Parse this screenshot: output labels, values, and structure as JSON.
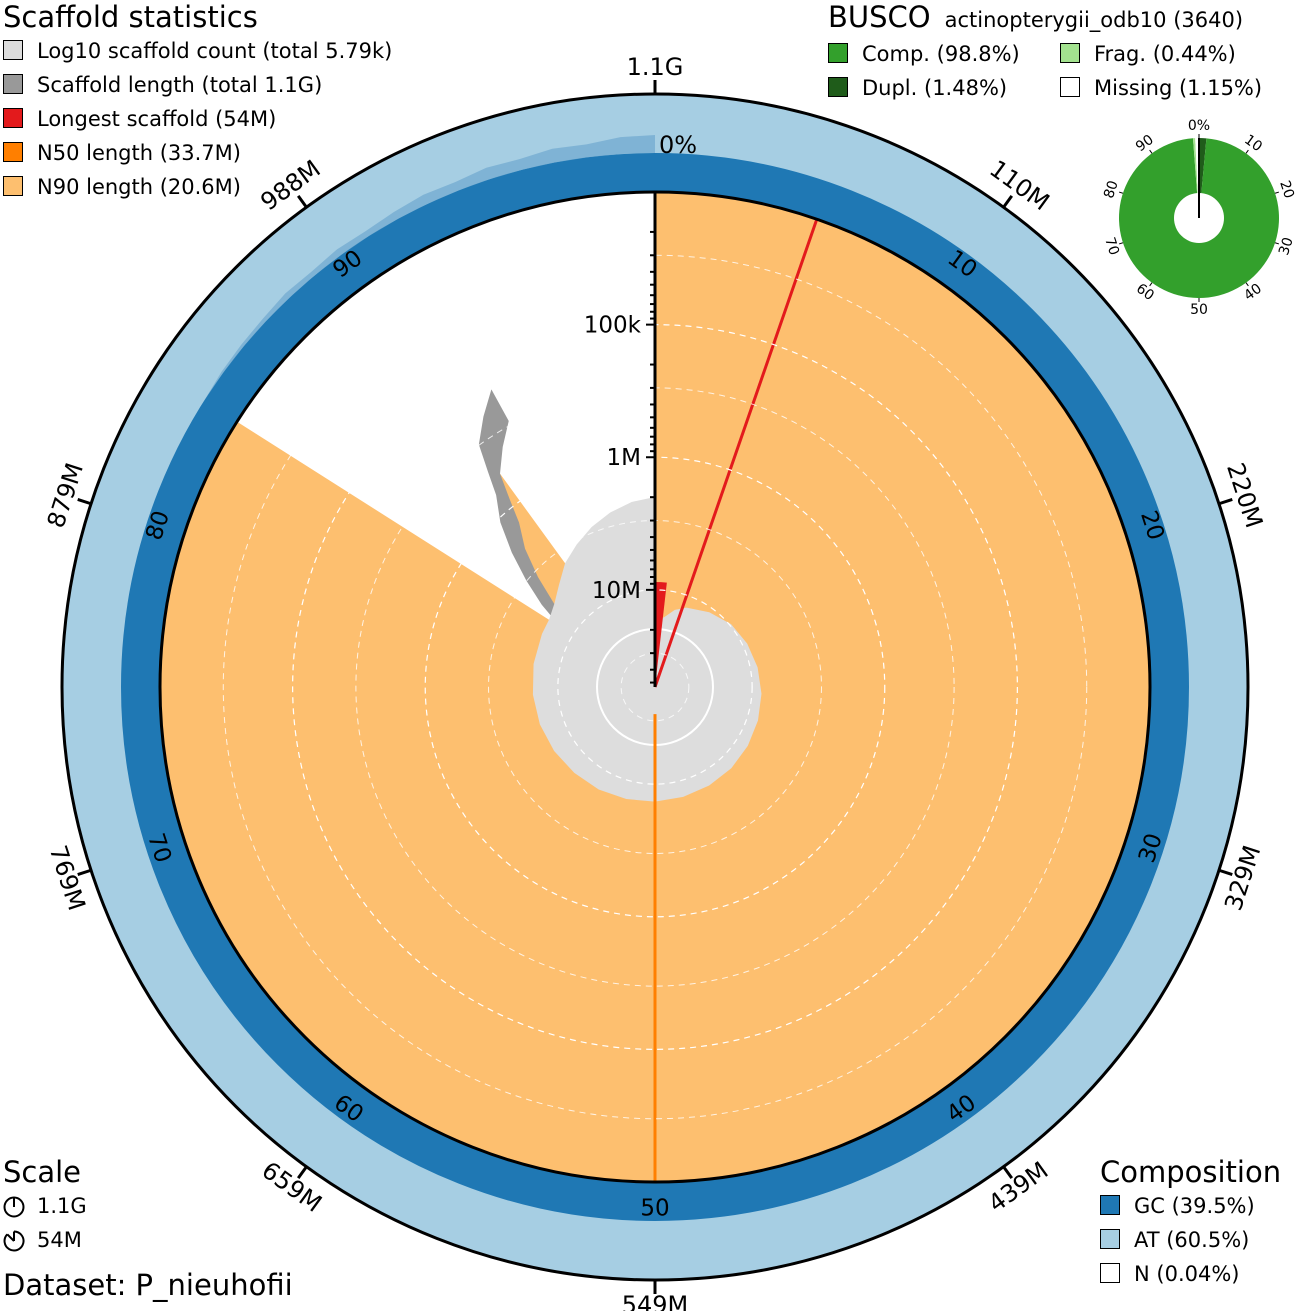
{
  "scaffold_stats": {
    "title": "Scaffold statistics",
    "legend": [
      {
        "label": "Log10 scaffold count (total 5.79k)",
        "color": "#dddddd"
      },
      {
        "label": "Scaffold length (total 1.1G)",
        "color": "#999999"
      },
      {
        "label": "Longest scaffold (54M)",
        "color": "#e31a1c"
      },
      {
        "label": "N50 length (33.7M)",
        "color": "#ff7f00"
      },
      {
        "label": "N90 length (20.6M)",
        "color": "#fdbf6f"
      }
    ]
  },
  "busco": {
    "title": "BUSCO",
    "lineage": "actinopterygii_odb10 (3640)",
    "legend": [
      {
        "label": "Comp. (98.8%)",
        "color": "#33a02c"
      },
      {
        "label": "Frag. (0.44%)",
        "color": "#a3e28f"
      },
      {
        "label": "Dupl. (1.48%)",
        "color": "#1f5c1a"
      },
      {
        "label": "Missing (1.15%)",
        "color": "#ffffff"
      }
    ],
    "ticks": [
      "0%",
      "10",
      "20",
      "30",
      "40",
      "50",
      "60",
      "70",
      "80",
      "90"
    ]
  },
  "scale": {
    "title": "Scale",
    "items": [
      {
        "label": "1.1G",
        "fraction": 1.0
      },
      {
        "label": "54M",
        "fraction": 0.049
      }
    ]
  },
  "dataset": "Dataset: P_nieuhofii",
  "composition": {
    "title": "Composition",
    "legend": [
      {
        "label": "GC (39.5%)",
        "color": "#1f78b4"
      },
      {
        "label": "AT (60.5%)",
        "color": "#a6cee3"
      },
      {
        "label": "N (0.04%)",
        "color": "#ffffff"
      }
    ]
  },
  "chart_data": {
    "type": "snail",
    "total_length": "1.1G",
    "scaffold_count": "5.79k",
    "longest_scaffold": 54,
    "n50": 33.7,
    "n90": 20.6,
    "length_unit": "M",
    "gc_percent": 39.5,
    "at_percent": 60.5,
    "n_percent": 0.04,
    "n50_percent": 50,
    "n90_percent": 90,
    "outer_labels": [
      "1.1G",
      "110M",
      "220M",
      "329M",
      "439M",
      "549M",
      "659M",
      "769M",
      "879M",
      "988M"
    ],
    "percent_labels": [
      "0%",
      "10",
      "20",
      "30",
      "40",
      "50",
      "60",
      "70",
      "80",
      "90"
    ],
    "radial_axis_labels": [
      {
        "label": "100k",
        "value": 0.1
      },
      {
        "label": "1M",
        "value": 1
      },
      {
        "label": "10M",
        "value": 10
      }
    ],
    "log_scale_max": 54,
    "log_scale_min": 0.01,
    "count_scale_max_log10": 3.76,
    "length_profile": [
      [
        0.0,
        54
      ],
      [
        2.0,
        50
      ],
      [
        4.0,
        47
      ],
      [
        6.0,
        45
      ],
      [
        9.0,
        43
      ],
      [
        12.0,
        41
      ],
      [
        15.0,
        40
      ],
      [
        18.0,
        39
      ],
      [
        21.0,
        38
      ],
      [
        24.0,
        37.5
      ],
      [
        27.0,
        37
      ],
      [
        30.0,
        36.5
      ],
      [
        33.0,
        36
      ],
      [
        36.0,
        35.5
      ],
      [
        39.0,
        35
      ],
      [
        42.0,
        34.5
      ],
      [
        45.0,
        34.2
      ],
      [
        48.0,
        34
      ],
      [
        50.0,
        33.7
      ],
      [
        53.0,
        33
      ],
      [
        56.0,
        31
      ],
      [
        59.0,
        30
      ],
      [
        62.0,
        29
      ],
      [
        65.0,
        28
      ],
      [
        68.0,
        27
      ],
      [
        71.0,
        26
      ],
      [
        74.0,
        25
      ],
      [
        77.0,
        24
      ],
      [
        80.0,
        23
      ],
      [
        82.0,
        21
      ],
      [
        84.0,
        13
      ],
      [
        85.0,
        8
      ],
      [
        86.0,
        5
      ],
      [
        87.0,
        3
      ],
      [
        88.0,
        1.8
      ],
      [
        89.0,
        1.2
      ],
      [
        89.5,
        0.8
      ],
      [
        90.0,
        0.5
      ],
      [
        91.0,
        0.35
      ],
      [
        92.0,
        0.25
      ],
      [
        93.0,
        0.18
      ],
      [
        94.0,
        0.13
      ],
      [
        95.0,
        0.1
      ],
      [
        96.0,
        0.08
      ],
      [
        97.0,
        0.06
      ],
      [
        98.0,
        0.045
      ],
      [
        99.0,
        0.03
      ],
      [
        100.0,
        0.01
      ]
    ],
    "count_profile": [
      [
        0.0,
        0.0
      ],
      [
        2.0,
        0.0
      ],
      [
        4.0,
        0.3
      ],
      [
        6.0,
        0.48
      ],
      [
        10.0,
        0.7
      ],
      [
        14.0,
        0.9
      ],
      [
        18.0,
        1.0
      ],
      [
        22.0,
        1.08
      ],
      [
        26.0,
        1.15
      ],
      [
        30.0,
        1.2
      ],
      [
        34.0,
        1.25
      ],
      [
        38.0,
        1.3
      ],
      [
        42.0,
        1.33
      ],
      [
        46.0,
        1.36
      ],
      [
        50.0,
        1.4
      ],
      [
        54.0,
        1.43
      ],
      [
        58.0,
        1.47
      ],
      [
        62.0,
        1.5
      ],
      [
        66.0,
        1.55
      ],
      [
        70.0,
        1.6
      ],
      [
        74.0,
        1.64
      ],
      [
        78.0,
        1.68
      ],
      [
        82.0,
        1.72
      ],
      [
        84.0,
        1.74
      ],
      [
        86.0,
        1.9
      ],
      [
        88.0,
        2.2
      ],
      [
        90.0,
        2.6
      ],
      [
        92.0,
        2.9
      ],
      [
        94.0,
        3.2
      ],
      [
        96.0,
        3.45
      ],
      [
        98.0,
        3.65
      ],
      [
        100.0,
        3.76
      ]
    ],
    "at_profile": [
      [
        84.0,
        0.0
      ],
      [
        85.0,
        0.1
      ],
      [
        86.0,
        0.15
      ],
      [
        87.0,
        0.2
      ],
      [
        88.0,
        0.3
      ],
      [
        89.0,
        0.25
      ],
      [
        90.0,
        0.35
      ],
      [
        91.0,
        0.3
      ],
      [
        92.0,
        0.4
      ],
      [
        93.0,
        0.5
      ],
      [
        94.0,
        0.45
      ],
      [
        95.0,
        0.6
      ],
      [
        96.0,
        0.55
      ],
      [
        97.0,
        0.7
      ],
      [
        98.0,
        0.65
      ],
      [
        99.0,
        0.85
      ],
      [
        100.0,
        0.9
      ]
    ],
    "busco_chart": {
      "type": "pie",
      "complete": 98.8,
      "duplicated": 1.48,
      "fragmented": 0.44,
      "missing": 1.15
    }
  }
}
